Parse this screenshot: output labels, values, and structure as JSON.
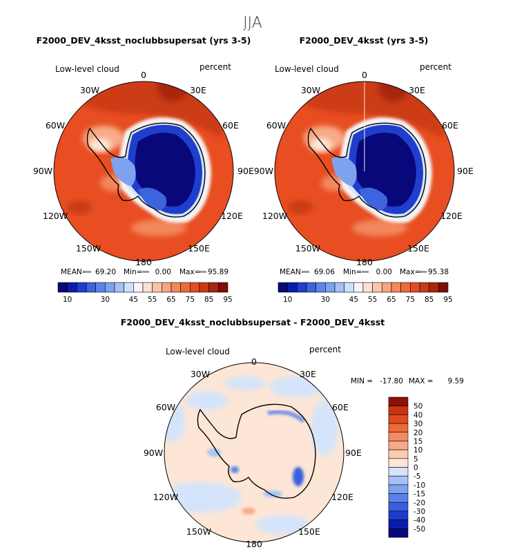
{
  "super_title": "JJA",
  "chart_data": [
    {
      "type": "heatmap",
      "projection": "south-polar-stereographic",
      "title": "F2000_DEV_4ksst_noclubbsupersat (yrs 3-5)",
      "field_label": "Low-level cloud",
      "units": "percent",
      "lon_labels": [
        "0",
        "30E",
        "60E",
        "90E",
        "120E",
        "150E",
        "180",
        "150W",
        "120W",
        "90W",
        "60W",
        "30W"
      ],
      "stats": {
        "mean_label": "MEAN=",
        "mean": "69.20",
        "min_label": "Min=",
        "min": "0.00",
        "max_label": "Max=",
        "max": "95.89"
      },
      "colorbar": {
        "levels": [
          10,
          15,
          20,
          25,
          30,
          35,
          40,
          45,
          50,
          55,
          60,
          65,
          70,
          75,
          80,
          85,
          90,
          95
        ],
        "tick_labels": [
          "10",
          "30",
          "45",
          "55",
          "65",
          "75",
          "85",
          "95"
        ],
        "colors": [
          "#08087a",
          "#0a1da8",
          "#1f3ecc",
          "#3d64dc",
          "#5b86e8",
          "#7ea2ef",
          "#a4c0f5",
          "#cfe0fb",
          "#f5f5f5",
          "#fde0d2",
          "#fbc4aa",
          "#f7a582",
          "#f3875d",
          "#ed6a3c",
          "#e24e22",
          "#c93a14",
          "#a62610",
          "#7e0f08"
        ]
      }
    },
    {
      "type": "heatmap",
      "projection": "south-polar-stereographic",
      "title": "F2000_DEV_4ksst (yrs 3-5)",
      "field_label": "Low-level cloud",
      "units": "percent",
      "lon_labels": [
        "0",
        "30E",
        "60E",
        "90E",
        "120E",
        "150E",
        "180",
        "150W",
        "120W",
        "90W",
        "60W",
        "30W"
      ],
      "stats": {
        "mean_label": "MEAN=",
        "mean": "69.06",
        "min_label": "Min=",
        "min": "0.00",
        "max_label": "Max=",
        "max": "95.38"
      },
      "colorbar": {
        "levels": [
          10,
          15,
          20,
          25,
          30,
          35,
          40,
          45,
          50,
          55,
          60,
          65,
          70,
          75,
          80,
          85,
          90,
          95
        ],
        "tick_labels": [
          "10",
          "30",
          "45",
          "55",
          "65",
          "75",
          "85",
          "95"
        ],
        "colors": [
          "#08087a",
          "#0a1da8",
          "#1f3ecc",
          "#3d64dc",
          "#5b86e8",
          "#7ea2ef",
          "#a4c0f5",
          "#cfe0fb",
          "#f5f5f5",
          "#fde0d2",
          "#fbc4aa",
          "#f7a582",
          "#f3875d",
          "#ed6a3c",
          "#e24e22",
          "#c93a14",
          "#a62610",
          "#7e0f08"
        ]
      }
    },
    {
      "type": "heatmap",
      "projection": "south-polar-stereographic",
      "title": "F2000_DEV_4ksst_noclubbsupersat - F2000_DEV_4ksst",
      "field_label": "Low-level cloud",
      "units": "percent",
      "lon_labels": [
        "0",
        "30E",
        "60E",
        "90E",
        "120E",
        "150E",
        "180",
        "150W",
        "120W",
        "90W",
        "60W",
        "30W"
      ],
      "stats": {
        "min_label": "MIN =",
        "min": "-17.80",
        "max_label": "MAX =",
        "max": "9.59"
      },
      "colorbar": {
        "levels": [
          -50,
          -40,
          -30,
          -20,
          -15,
          -10,
          -5,
          0,
          5,
          10,
          15,
          20,
          30,
          40,
          50
        ],
        "tick_labels": [
          "-50",
          "-40",
          "-30",
          "-20",
          "-15",
          "-10",
          "-5",
          "0",
          "5",
          "10",
          "15",
          "20",
          "30",
          "40",
          "50"
        ],
        "colors": [
          "#08087a",
          "#0a1da8",
          "#1d3ccc",
          "#3a5ee0",
          "#5882ea",
          "#7ea2ef",
          "#a6c2f5",
          "#d4e4fa",
          "#fde6d6",
          "#fbcbb0",
          "#f8ab88",
          "#f38a60",
          "#ec6a3c",
          "#e04a1e",
          "#c9320e",
          "#8e1008"
        ]
      }
    }
  ]
}
